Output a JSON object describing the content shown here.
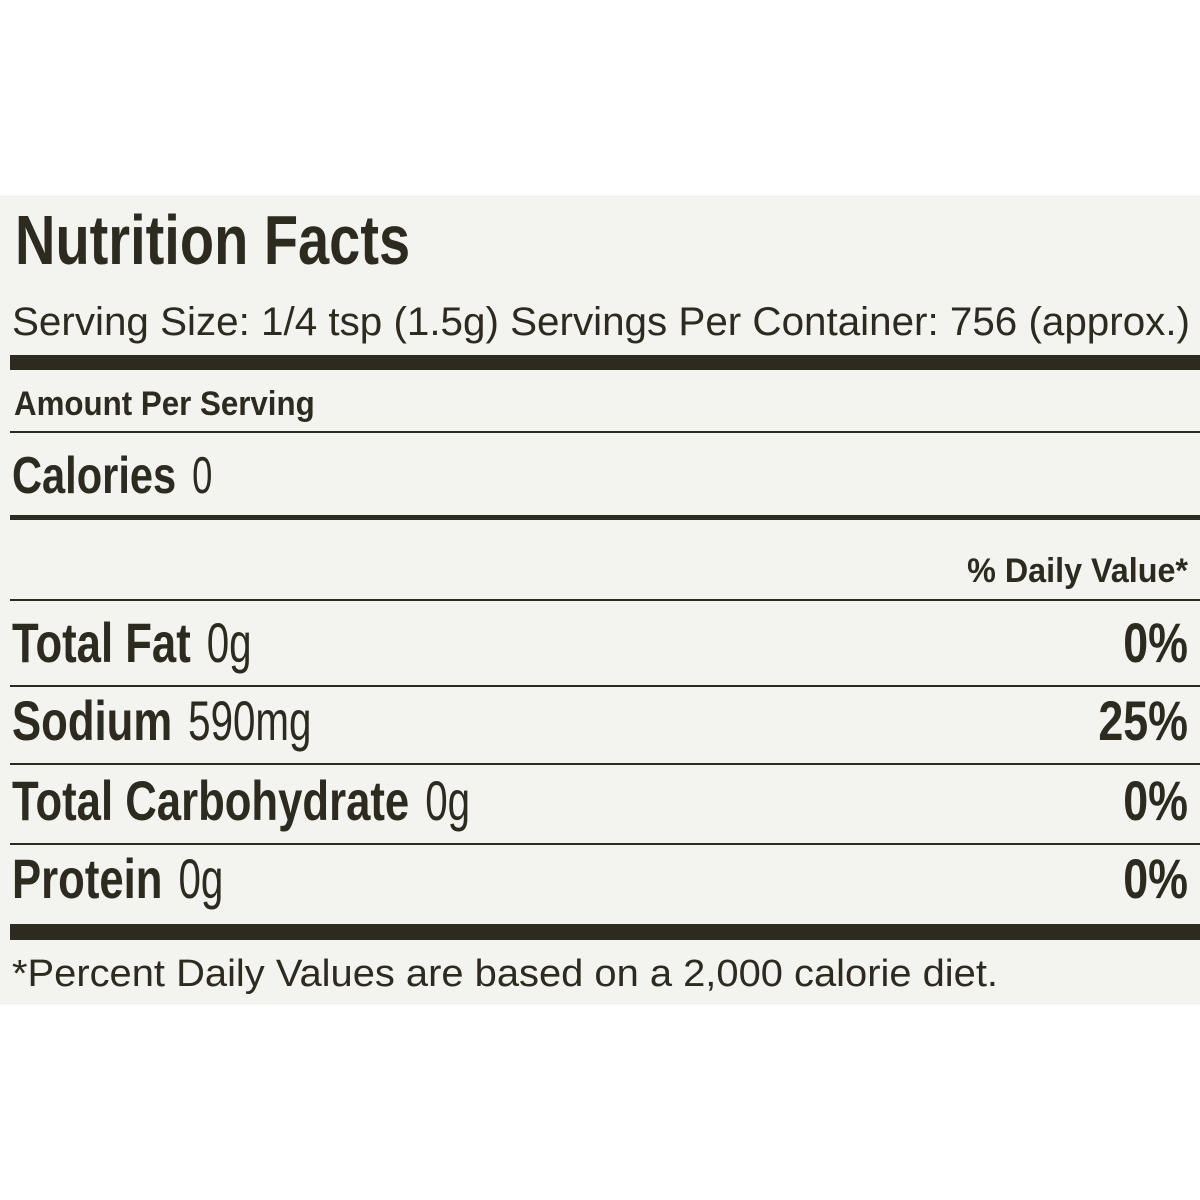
{
  "title": "Nutrition Facts",
  "serving": "Serving Size: 1/4 tsp (1.5g) Servings Per Container: 756 (approx.)",
  "amount_per_serving": "Amount Per Serving",
  "calories": {
    "label": "Calories",
    "value": "0"
  },
  "daily_value_header": "% Daily Value*",
  "nutrients": [
    {
      "name": "Total Fat",
      "amount": "0g",
      "dv": "0%"
    },
    {
      "name": "Sodium",
      "amount": "590mg",
      "dv": "25%"
    },
    {
      "name": "Total Carbohydrate",
      "amount": "0g",
      "dv": "0%"
    },
    {
      "name": "Protein",
      "amount": "0g",
      "dv": "0%"
    }
  ],
  "footnote": "*Percent Daily Values are based on a 2,000 calorie diet."
}
